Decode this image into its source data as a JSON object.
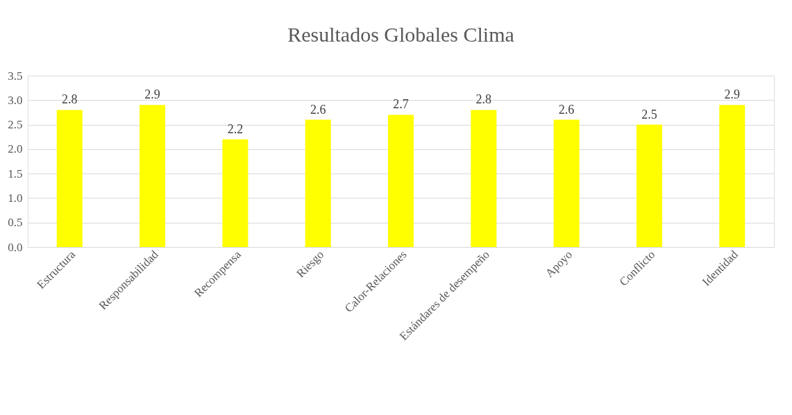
{
  "chart_data": {
    "type": "bar",
    "title": "Resultados Globales Clima",
    "categories": [
      "Estructura",
      "Responsabilidad",
      "Recompensa",
      "Riesgo",
      "Calor-Relaciones",
      "Estándares de desempeño",
      "Apoyo",
      "Conflicto",
      "Identidad"
    ],
    "values": [
      2.8,
      2.9,
      2.2,
      2.6,
      2.7,
      2.8,
      2.6,
      2.5,
      2.9
    ],
    "color": "#ffff00",
    "ylim": [
      0,
      3.5
    ],
    "yticks": [
      {
        "value": 0,
        "label": "0.0"
      },
      {
        "value": 0.5,
        "label": "0.5"
      },
      {
        "value": 1,
        "label": "1.0"
      },
      {
        "value": 1.5,
        "label": "1.5"
      },
      {
        "value": 2,
        "label": "2.0"
      },
      {
        "value": 2.5,
        "label": "2.5"
      },
      {
        "value": 3,
        "label": "3.0"
      },
      {
        "value": 3.5,
        "label": "3.5"
      }
    ],
    "grid": "y",
    "data_labels": true
  }
}
